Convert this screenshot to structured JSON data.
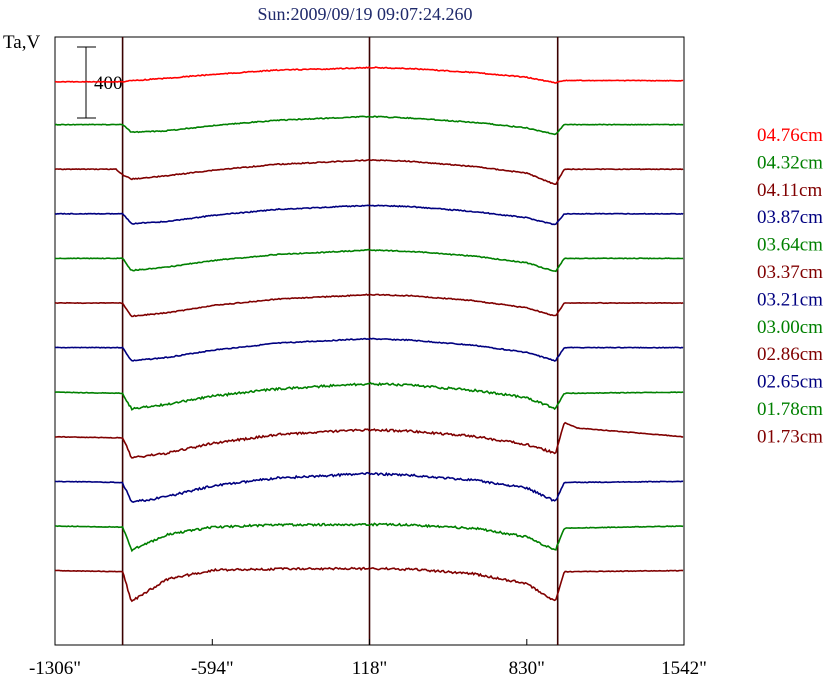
{
  "chart_data": {
    "type": "line",
    "title": "Sun:2009/09/19 09:07:24.260",
    "ylabel": "Ta,V",
    "scale_bar_label": "400",
    "x_ticks": [
      "-1306\"",
      "-594\"",
      "118\"",
      "830\"",
      "1542\""
    ],
    "x_tick_values": [
      -1306,
      -594,
      118,
      830,
      1542
    ],
    "xlim": [
      -1306,
      1542
    ],
    "vertical_markers_arcsec": [
      -1000,
      118,
      970
    ],
    "colors": {
      "red": "#ff0000",
      "green": "#008000",
      "maroon": "#800000",
      "blue": "#000080",
      "title": "#1f2a6b"
    },
    "series": [
      {
        "name": "04.76cm",
        "color": "#ff0000",
        "points": [
          [
            -1306,
            -8
          ],
          [
            -1000,
            -8
          ],
          [
            -960,
            -3
          ],
          [
            -800,
            8
          ],
          [
            -594,
            25
          ],
          [
            -300,
            45
          ],
          [
            0,
            52
          ],
          [
            118,
            57
          ],
          [
            300,
            52
          ],
          [
            594,
            34
          ],
          [
            830,
            12
          ],
          [
            960,
            -12
          ],
          [
            1000,
            -2
          ],
          [
            1542,
            -3
          ]
        ]
      },
      {
        "name": "04.32cm",
        "color": "#008000",
        "points": [
          [
            -1306,
            0
          ],
          [
            -1000,
            0
          ],
          [
            -960,
            -35
          ],
          [
            -800,
            -28
          ],
          [
            -594,
            -5
          ],
          [
            -300,
            20
          ],
          [
            0,
            32
          ],
          [
            118,
            37
          ],
          [
            300,
            30
          ],
          [
            594,
            10
          ],
          [
            830,
            -15
          ],
          [
            960,
            -45
          ],
          [
            1000,
            0
          ],
          [
            1542,
            0
          ]
        ]
      },
      {
        "name": "04.11cm",
        "color": "#800000",
        "points": [
          [
            -1306,
            0
          ],
          [
            -1030,
            0
          ],
          [
            -1000,
            -25
          ],
          [
            -960,
            -45
          ],
          [
            -800,
            -30
          ],
          [
            -594,
            -5
          ],
          [
            -300,
            22
          ],
          [
            0,
            36
          ],
          [
            118,
            42
          ],
          [
            300,
            36
          ],
          [
            594,
            12
          ],
          [
            830,
            -18
          ],
          [
            960,
            -70
          ],
          [
            1000,
            0
          ],
          [
            1542,
            0
          ]
        ]
      },
      {
        "name": "03.87cm",
        "color": "#000080",
        "points": [
          [
            -1306,
            0
          ],
          [
            -1000,
            0
          ],
          [
            -960,
            -45
          ],
          [
            -800,
            -35
          ],
          [
            -594,
            -8
          ],
          [
            -300,
            20
          ],
          [
            0,
            33
          ],
          [
            118,
            38
          ],
          [
            300,
            33
          ],
          [
            594,
            10
          ],
          [
            830,
            -18
          ],
          [
            960,
            -50
          ],
          [
            1000,
            0
          ],
          [
            1542,
            0
          ]
        ]
      },
      {
        "name": "03.64cm",
        "color": "#008000",
        "points": [
          [
            -1306,
            0
          ],
          [
            -1000,
            0
          ],
          [
            -960,
            -55
          ],
          [
            -800,
            -40
          ],
          [
            -594,
            -10
          ],
          [
            -300,
            18
          ],
          [
            0,
            32
          ],
          [
            118,
            38
          ],
          [
            300,
            32
          ],
          [
            594,
            10
          ],
          [
            830,
            -20
          ],
          [
            960,
            -60
          ],
          [
            1000,
            0
          ],
          [
            1542,
            0
          ]
        ]
      },
      {
        "name": "03.37cm",
        "color": "#800000",
        "points": [
          [
            -1306,
            0
          ],
          [
            -1000,
            0
          ],
          [
            -960,
            -60
          ],
          [
            -800,
            -45
          ],
          [
            -594,
            -12
          ],
          [
            -300,
            18
          ],
          [
            0,
            32
          ],
          [
            118,
            38
          ],
          [
            300,
            33
          ],
          [
            594,
            10
          ],
          [
            830,
            -22
          ],
          [
            960,
            -60
          ],
          [
            1000,
            0
          ],
          [
            1542,
            0
          ]
        ]
      },
      {
        "name": "03.21cm",
        "color": "#000080",
        "points": [
          [
            -1306,
            0
          ],
          [
            -1000,
            0
          ],
          [
            -960,
            -60
          ],
          [
            -800,
            -45
          ],
          [
            -594,
            -12
          ],
          [
            -300,
            20
          ],
          [
            0,
            35
          ],
          [
            118,
            40
          ],
          [
            300,
            34
          ],
          [
            594,
            10
          ],
          [
            830,
            -22
          ],
          [
            960,
            -60
          ],
          [
            1000,
            0
          ],
          [
            1542,
            0
          ]
        ]
      },
      {
        "name": "03.00cm",
        "color": "#008000",
        "points": [
          [
            -1306,
            0
          ],
          [
            -1000,
            -5
          ],
          [
            -960,
            -75
          ],
          [
            -800,
            -55
          ],
          [
            -594,
            -18
          ],
          [
            -300,
            15
          ],
          [
            0,
            32
          ],
          [
            118,
            38
          ],
          [
            300,
            32
          ],
          [
            594,
            8
          ],
          [
            830,
            -25
          ],
          [
            960,
            -75
          ],
          [
            1000,
            -5
          ],
          [
            1542,
            0
          ]
        ]
      },
      {
        "name": "02.86cm",
        "color": "#800000",
        "points": [
          [
            -1306,
            0
          ],
          [
            -1000,
            -5
          ],
          [
            -960,
            -95
          ],
          [
            -800,
            -75
          ],
          [
            -594,
            -30
          ],
          [
            -300,
            10
          ],
          [
            0,
            28
          ],
          [
            118,
            32
          ],
          [
            300,
            26
          ],
          [
            594,
            2
          ],
          [
            830,
            -35
          ],
          [
            960,
            -75
          ],
          [
            1000,
            65
          ],
          [
            1060,
            40
          ],
          [
            1542,
            0
          ]
        ]
      },
      {
        "name": "02.65cm",
        "color": "#000080",
        "points": [
          [
            -1306,
            0
          ],
          [
            -1000,
            -5
          ],
          [
            -960,
            -95
          ],
          [
            -800,
            -70
          ],
          [
            -594,
            -20
          ],
          [
            -300,
            15
          ],
          [
            0,
            30
          ],
          [
            118,
            35
          ],
          [
            300,
            28
          ],
          [
            594,
            5
          ],
          [
            830,
            -30
          ],
          [
            960,
            -90
          ],
          [
            1000,
            -5
          ],
          [
            1542,
            0
          ]
        ]
      },
      {
        "name": "01.78cm",
        "color": "#008000",
        "points": [
          [
            -1306,
            0
          ],
          [
            -1000,
            -5
          ],
          [
            -960,
            -110
          ],
          [
            -800,
            -40
          ],
          [
            -594,
            -5
          ],
          [
            -300,
            5
          ],
          [
            0,
            7
          ],
          [
            118,
            7
          ],
          [
            300,
            5
          ],
          [
            594,
            -10
          ],
          [
            830,
            -50
          ],
          [
            960,
            -110
          ],
          [
            1000,
            -10
          ],
          [
            1542,
            0
          ]
        ]
      },
      {
        "name": "01.73cm",
        "color": "#800000",
        "points": [
          [
            -1306,
            0
          ],
          [
            -1000,
            -5
          ],
          [
            -960,
            -140
          ],
          [
            -800,
            -40
          ],
          [
            -594,
            2
          ],
          [
            -300,
            7
          ],
          [
            0,
            9
          ],
          [
            118,
            9
          ],
          [
            300,
            6
          ],
          [
            594,
            -15
          ],
          [
            830,
            -60
          ],
          [
            960,
            -140
          ],
          [
            1000,
            -5
          ],
          [
            1542,
            0
          ]
        ]
      }
    ]
  }
}
